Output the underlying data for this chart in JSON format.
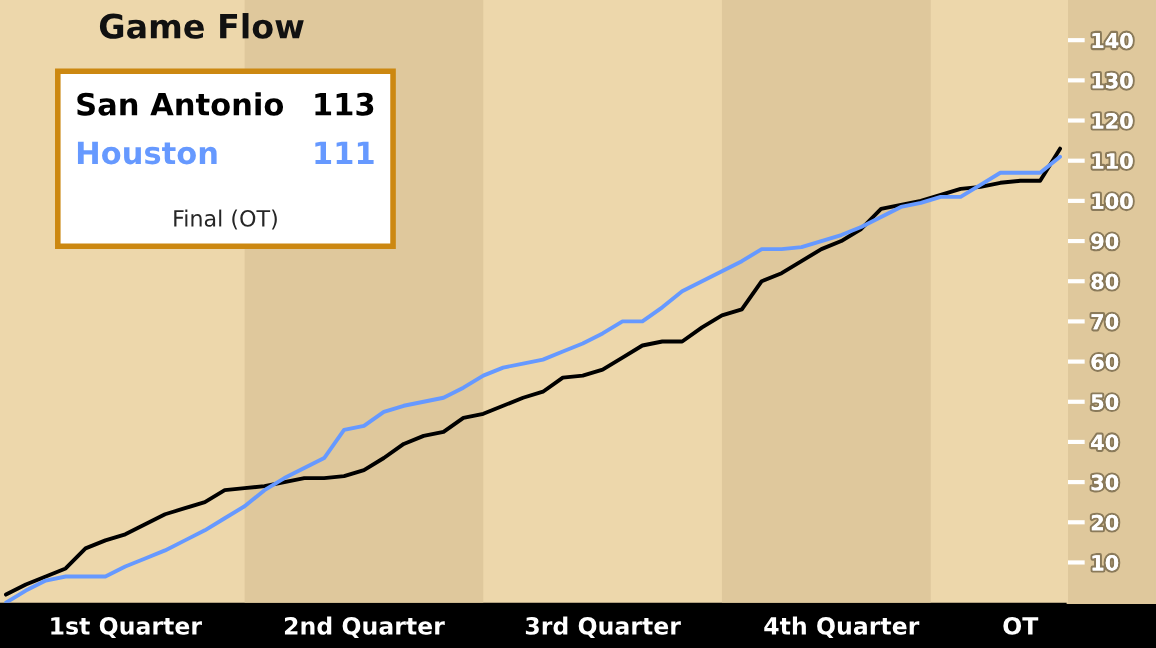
{
  "chart_data": {
    "type": "line",
    "title": "Game Flow",
    "categories": [
      null,
      null,
      null,
      null,
      null,
      null,
      "1st Quarter",
      null,
      null,
      null,
      null,
      null,
      null,
      null,
      null,
      null,
      null,
      null,
      "2nd Quarter",
      null,
      null,
      null,
      null,
      null,
      null,
      null,
      null,
      null,
      null,
      null,
      "3rd Quarter",
      null,
      null,
      null,
      null,
      null,
      null,
      null,
      null,
      null,
      null,
      null,
      "4th Quarter",
      null,
      null,
      null,
      null,
      null,
      null,
      null,
      null,
      "OT",
      null,
      null
    ],
    "series": [
      {
        "name": "San Antonio",
        "color": "#000000",
        "values": [
          2,
          4.5,
          6.5,
          8.5,
          13.5,
          15.5,
          17,
          19.5,
          22,
          23.5,
          25,
          28,
          28.5,
          29,
          30,
          31,
          31,
          31.5,
          33,
          36,
          39.5,
          41.5,
          42.5,
          46,
          47,
          49,
          51,
          52.5,
          56,
          56.5,
          58,
          61,
          64,
          65,
          65,
          68.5,
          71.5,
          73,
          80,
          82,
          85,
          88,
          90,
          93,
          98,
          99,
          100,
          101.5,
          103,
          103.5,
          104.5,
          105,
          105,
          113
        ]
      },
      {
        "name": "Houston",
        "color": "#6699ff",
        "values": [
          0,
          3,
          5.5,
          6.5,
          6.5,
          6.5,
          9,
          11,
          13,
          15.5,
          18,
          21,
          24,
          28,
          31,
          33.5,
          36,
          43,
          44,
          47.5,
          49,
          50,
          51,
          53.5,
          56.5,
          58.5,
          59.5,
          60.5,
          62.5,
          64.5,
          67,
          70,
          70,
          73.5,
          77.5,
          80,
          82.5,
          85,
          88,
          88,
          88.5,
          90,
          91.5,
          93.5,
          96,
          98.5,
          99.5,
          101,
          101,
          104,
          107,
          107,
          107,
          111
        ]
      }
    ],
    "ylim": [
      0,
      150
    ],
    "yticks": [
      10,
      20,
      30,
      40,
      50,
      60,
      70,
      80,
      90,
      100,
      110,
      120,
      130,
      140
    ],
    "annotations": [
      "113",
      "111",
      "Final (OT)"
    ]
  }
}
